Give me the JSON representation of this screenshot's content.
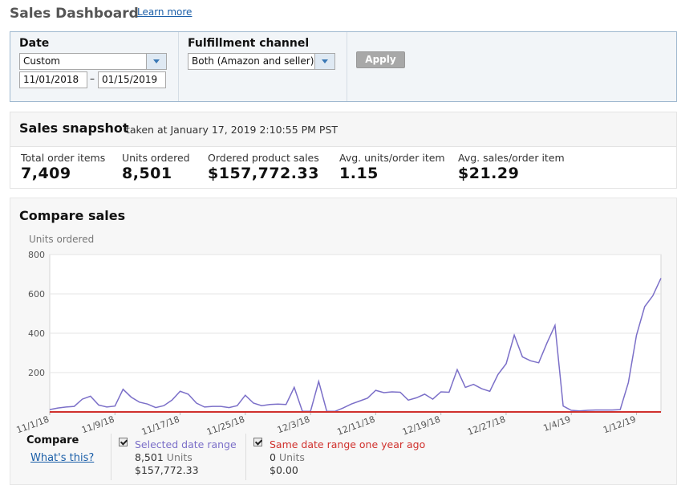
{
  "header": {
    "title": "Sales Dashboard",
    "link": "Learn more"
  },
  "filters": {
    "date": {
      "label": "Date",
      "select": "Custom",
      "from": "11/01/2018",
      "separator": "–",
      "to": "01/15/2019"
    },
    "channel": {
      "label": "Fulfillment channel",
      "select": "Both (Amazon and seller)"
    },
    "apply": "Apply"
  },
  "snapshot": {
    "title": "Sales snapshot",
    "taken": "taken at January 17, 2019 2:10:55 PM PST",
    "metrics": [
      {
        "label": "Total order items",
        "value": "7,409"
      },
      {
        "label": "Units ordered",
        "value": "8,501"
      },
      {
        "label": "Ordered product sales",
        "value": "$157,772.33"
      },
      {
        "label": "Avg. units/order item",
        "value": "1.15"
      },
      {
        "label": "Avg. sales/order item",
        "value": "$21.29"
      }
    ]
  },
  "compare": {
    "title": "Compare sales",
    "label": "Compare",
    "help": "What's this?",
    "items": [
      {
        "units": "8,501",
        "unit": "Units",
        "sales": "$157,772.33"
      },
      {
        "units": "0",
        "unit": "Units",
        "sales": "$0.00"
      }
    ]
  },
  "chart_data": {
    "type": "line",
    "y_label": "Units ordered",
    "categories": [
      "11/1/18",
      null,
      null,
      null,
      null,
      null,
      null,
      null,
      "11/9/18",
      null,
      null,
      null,
      null,
      null,
      null,
      null,
      "11/17/18",
      null,
      null,
      null,
      null,
      null,
      null,
      null,
      "11/25/18",
      null,
      null,
      null,
      null,
      null,
      null,
      null,
      "12/3/18",
      null,
      null,
      null,
      null,
      null,
      null,
      null,
      "12/11/18",
      null,
      null,
      null,
      null,
      null,
      null,
      null,
      "12/19/18",
      null,
      null,
      null,
      null,
      null,
      null,
      null,
      "12/27/18",
      null,
      null,
      null,
      null,
      null,
      null,
      null,
      "1/4/19",
      null,
      null,
      null,
      null,
      null,
      null,
      null,
      "1/12/19",
      null,
      null,
      null
    ],
    "series": [
      {
        "name": "Selected date range",
        "color": "#7b6fc8",
        "values": [
          12,
          20,
          25,
          28,
          65,
          80,
          35,
          25,
          30,
          115,
          75,
          50,
          40,
          22,
          32,
          60,
          105,
          90,
          45,
          25,
          28,
          28,
          22,
          32,
          85,
          45,
          32,
          38,
          40,
          38,
          125,
          3,
          3,
          155,
          3,
          3,
          20,
          40,
          55,
          70,
          110,
          98,
          102,
          100,
          60,
          72,
          90,
          65,
          102,
          100,
          215,
          125,
          140,
          118,
          105,
          190,
          245,
          390,
          280,
          260,
          250,
          350,
          440,
          30,
          8,
          5,
          8,
          10,
          10,
          10,
          12,
          150,
          390,
          535,
          590,
          680
        ]
      },
      {
        "name": "Same date range one year ago",
        "color": "#d0312d",
        "values": [
          0,
          0,
          0,
          0,
          0,
          0,
          0,
          0,
          0,
          0,
          0,
          0,
          0,
          0,
          0,
          0,
          0,
          0,
          0,
          0,
          0,
          0,
          0,
          0,
          0,
          0,
          0,
          0,
          0,
          0,
          0,
          0,
          0,
          0,
          0,
          0,
          0,
          0,
          0,
          0,
          0,
          0,
          0,
          0,
          0,
          0,
          0,
          0,
          0,
          0,
          0,
          0,
          0,
          0,
          0,
          0,
          0,
          0,
          0,
          0,
          0,
          0,
          0,
          0,
          0,
          0,
          0,
          0,
          0,
          0,
          0,
          0,
          0,
          0,
          0,
          0
        ]
      }
    ],
    "ylim": [
      0,
      800
    ],
    "yticks": [
      200,
      400,
      600,
      800
    ],
    "grid": true
  }
}
